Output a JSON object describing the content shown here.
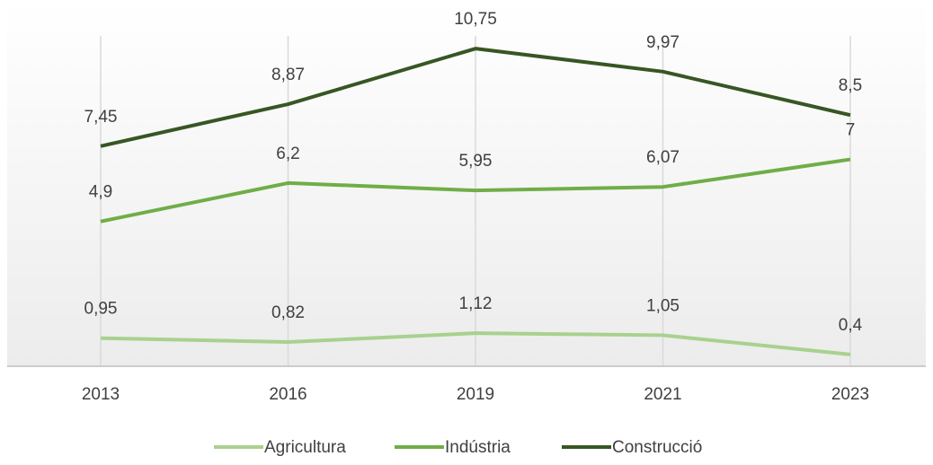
{
  "chart_data": {
    "type": "line",
    "categories": [
      "2013",
      "2016",
      "2019",
      "2021",
      "2023"
    ],
    "series": [
      {
        "name": "Agricultura",
        "color": "#a9d18e",
        "values": [
          0.95,
          0.82,
          1.12,
          1.05,
          0.4
        ],
        "value_labels": [
          "0,95",
          "0,82",
          "1,12",
          "1,05",
          "0,4"
        ]
      },
      {
        "name": "Indústria",
        "color": "#70ad47",
        "values": [
          4.9,
          6.2,
          5.95,
          6.07,
          7
        ],
        "value_labels": [
          "4,9",
          "6,2",
          "5,95",
          "6,07",
          "7"
        ]
      },
      {
        "name": "Construcció",
        "color": "#375623",
        "values": [
          7.45,
          8.87,
          10.75,
          9.97,
          8.5
        ],
        "value_labels": [
          "7,45",
          "8,87",
          "10,75",
          "9,97",
          "8,5"
        ]
      }
    ],
    "ylim": [
      0,
      12
    ],
    "legend": "bottom"
  }
}
